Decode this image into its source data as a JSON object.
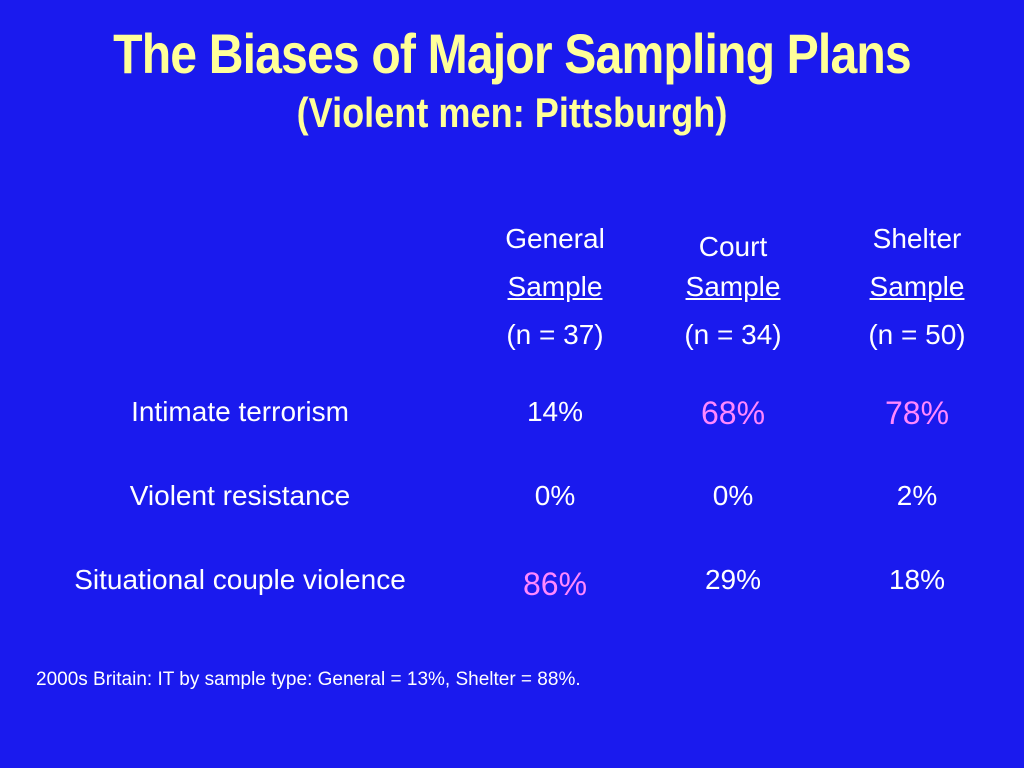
{
  "title": "The Biases of Major Sampling Plans",
  "subtitle": "(Violent men: Pittsburgh)",
  "columns": [
    {
      "line1": "General",
      "line2": "Sample",
      "line3": "(n = 37)"
    },
    {
      "line1": "Court",
      "line2": "Sample",
      "line3": "(n = 34)"
    },
    {
      "line1": "Shelter",
      "line2": "Sample",
      "line3": "(n = 50)"
    }
  ],
  "rows": [
    {
      "label": "Intimate terrorism",
      "values": [
        "14%",
        "68%",
        "78%"
      ],
      "highlight": [
        false,
        true,
        true
      ]
    },
    {
      "label": "Violent resistance",
      "values": [
        "0%",
        "0%",
        "2%"
      ],
      "highlight": [
        false,
        false,
        false
      ]
    },
    {
      "label": "Situational couple violence",
      "values": [
        "86%",
        "29%",
        "18%"
      ],
      "highlight": [
        true,
        false,
        false
      ]
    }
  ],
  "footnote": "2000s Britain: IT by sample type: General = 13%, Shelter = 88%.",
  "colors": {
    "background": "#1a1aee",
    "title": "#ffff99",
    "text": "#ffffff",
    "highlight": "#ff88ff"
  }
}
